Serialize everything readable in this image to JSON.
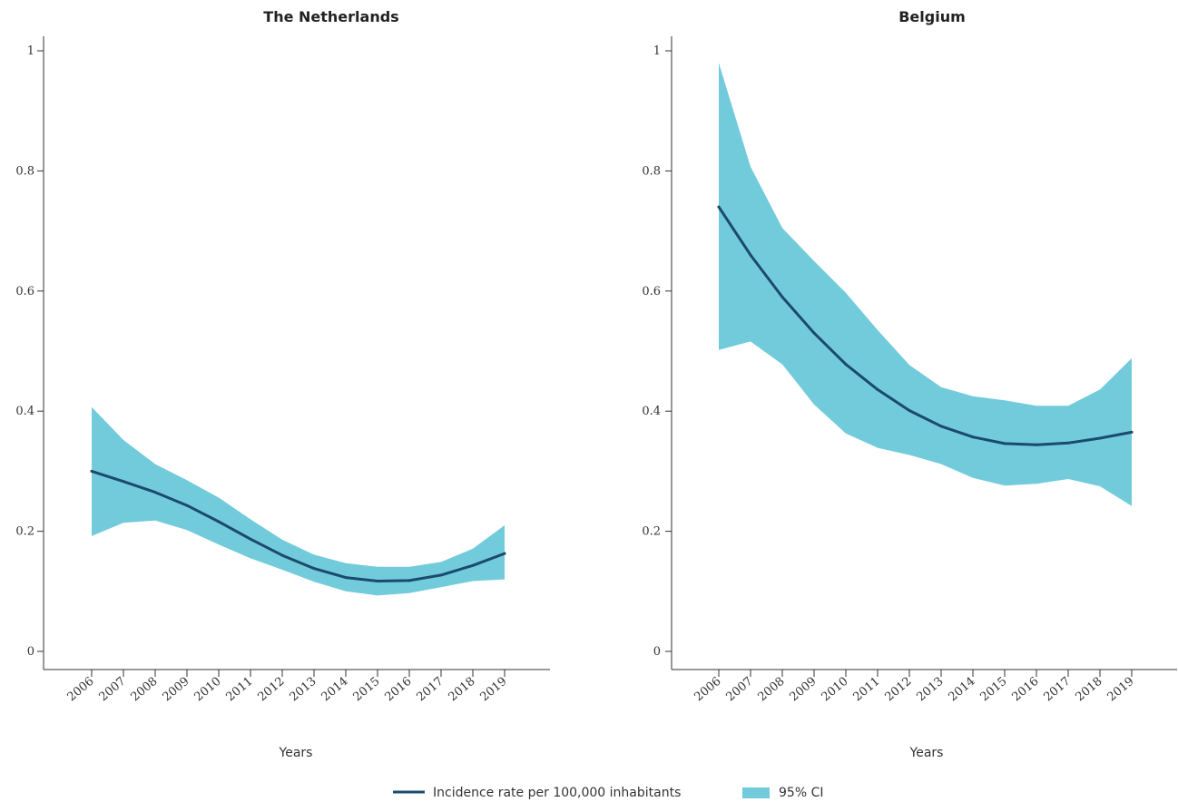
{
  "chart_data": [
    {
      "type": "line",
      "title": "The Netherlands",
      "xlabel": "Years",
      "ylabel": "",
      "x": [
        "2006",
        "2007",
        "2008",
        "2009",
        "2010",
        "2011",
        "2012",
        "2013",
        "2014",
        "2015",
        "2016",
        "2017",
        "2018",
        "2019"
      ],
      "ylim": [
        0,
        1
      ],
      "yticks": [
        "0",
        "0.2",
        "0.4",
        "0.6",
        "0.8",
        "1"
      ],
      "series": [
        {
          "name": "Incidence rate per 100,000 inhabitants",
          "values": [
            0.3,
            0.283,
            0.265,
            0.243,
            0.216,
            0.187,
            0.16,
            0.138,
            0.123,
            0.117,
            0.118,
            0.127,
            0.143,
            0.163
          ],
          "lower": [
            0.192,
            0.214,
            0.218,
            0.202,
            0.178,
            0.155,
            0.136,
            0.116,
            0.1,
            0.093,
            0.097,
            0.107,
            0.117,
            0.12
          ],
          "upper": [
            0.407,
            0.352,
            0.312,
            0.285,
            0.256,
            0.22,
            0.186,
            0.161,
            0.147,
            0.141,
            0.141,
            0.149,
            0.171,
            0.21
          ]
        }
      ],
      "grid": false
    },
    {
      "type": "line",
      "title": "Belgium",
      "xlabel": "Years",
      "ylabel": "",
      "x": [
        "2006",
        "2007",
        "2008",
        "2009",
        "2010",
        "2011",
        "2012",
        "2013",
        "2014",
        "2015",
        "2016",
        "2017",
        "2018",
        "2019"
      ],
      "ylim": [
        0,
        1
      ],
      "yticks": [
        "0",
        "0.2",
        "0.4",
        "0.6",
        "0.8",
        "1"
      ],
      "series": [
        {
          "name": "Incidence rate per 100,000 inhabitants",
          "values": [
            0.74,
            0.66,
            0.59,
            0.53,
            0.478,
            0.436,
            0.401,
            0.375,
            0.357,
            0.346,
            0.344,
            0.347,
            0.355,
            0.365
          ],
          "lower": [
            0.502,
            0.516,
            0.478,
            0.411,
            0.363,
            0.339,
            0.327,
            0.312,
            0.289,
            0.276,
            0.279,
            0.287,
            0.275,
            0.242
          ],
          "upper": [
            0.98,
            0.807,
            0.705,
            0.65,
            0.597,
            0.535,
            0.477,
            0.44,
            0.425,
            0.418,
            0.409,
            0.409,
            0.436,
            0.488
          ]
        }
      ],
      "grid": false
    }
  ],
  "legend": {
    "placement": "bottom-center",
    "line_label": "Incidence rate per 100,000 inhabitants",
    "band_label": "95% CI"
  },
  "colors": {
    "line": "#1b4a6b",
    "band": "#72cbdb",
    "axis": "#333333"
  }
}
